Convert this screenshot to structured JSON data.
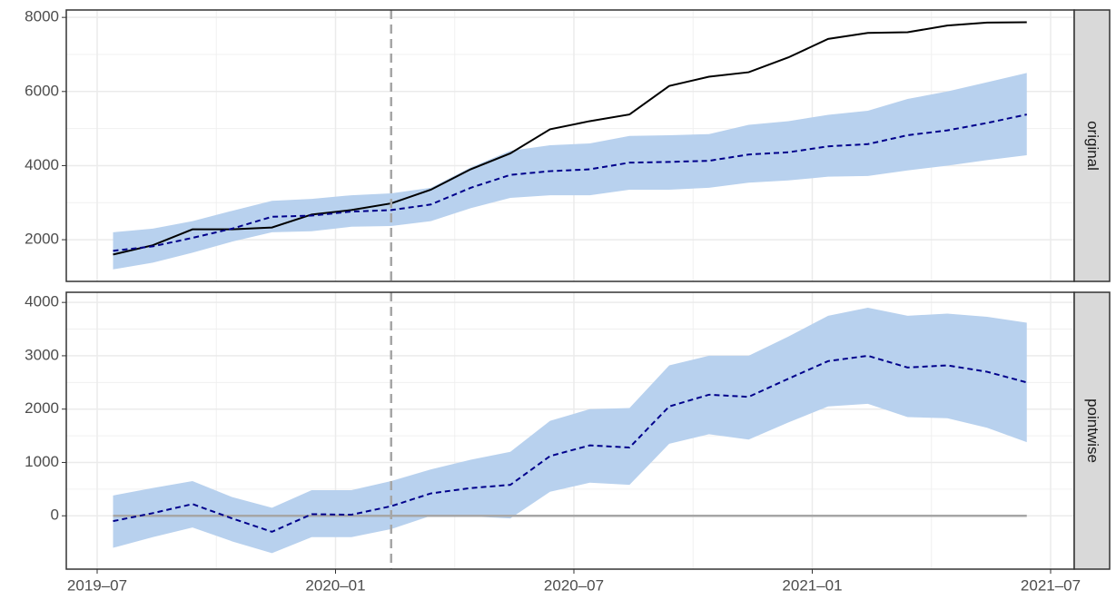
{
  "chart_data": [
    {
      "type": "line",
      "strip": "original",
      "x": [
        "2019-07",
        "2019-08",
        "2019-09",
        "2019-10",
        "2019-11",
        "2019-12",
        "2020-01",
        "2020-02",
        "2020-03",
        "2020-04",
        "2020-05",
        "2020-06",
        "2020-07",
        "2020-08",
        "2020-09",
        "2020-10",
        "2020-11",
        "2020-12",
        "2021-01",
        "2021-02",
        "2021-03",
        "2021-04",
        "2021-05",
        "2021-06"
      ],
      "band": {
        "color": "#b8d1ee",
        "lower": [
          1200,
          1380,
          1650,
          1950,
          2200,
          2230,
          2350,
          2370,
          2500,
          2850,
          3130,
          3200,
          3200,
          3350,
          3350,
          3400,
          3540,
          3600,
          3700,
          3720,
          3870,
          4000,
          4150,
          4280
        ],
        "upper": [
          2200,
          2300,
          2500,
          2780,
          3050,
          3100,
          3200,
          3250,
          3400,
          3950,
          4400,
          4550,
          4600,
          4800,
          4820,
          4850,
          5100,
          5200,
          5370,
          5480,
          5800,
          6000,
          6250,
          6500
        ]
      },
      "series": [
        {
          "color": "#000000",
          "dashed": false,
          "values": [
            1600,
            1850,
            2280,
            2280,
            2330,
            2680,
            2800,
            2980,
            3350,
            3900,
            4330,
            4980,
            5200,
            5380,
            6150,
            6400,
            6520,
            6920,
            7420,
            7580,
            7600,
            7780,
            7860,
            7870
          ]
        },
        {
          "color": "#00008b",
          "dashed": true,
          "values": [
            1700,
            1820,
            2050,
            2300,
            2620,
            2650,
            2760,
            2800,
            2950,
            3400,
            3750,
            3850,
            3900,
            4080,
            4100,
            4130,
            4300,
            4360,
            4520,
            4580,
            4820,
            4950,
            5150,
            5380
          ]
        }
      ],
      "vline": "2020-02",
      "ylim": [
        875,
        8200
      ],
      "yticks": [
        2000,
        4000,
        6000,
        8000
      ],
      "grid": true
    },
    {
      "type": "line",
      "strip": "pointwise",
      "x": [
        "2019-07",
        "2019-08",
        "2019-09",
        "2019-10",
        "2019-11",
        "2019-12",
        "2020-01",
        "2020-02",
        "2020-03",
        "2020-04",
        "2020-05",
        "2020-06",
        "2020-07",
        "2020-08",
        "2020-09",
        "2020-10",
        "2020-11",
        "2020-12",
        "2021-01",
        "2021-02",
        "2021-03",
        "2021-04",
        "2021-05",
        "2021-06"
      ],
      "band": {
        "color": "#b8d1ee",
        "lower": [
          -600,
          -400,
          -220,
          -480,
          -700,
          -400,
          -400,
          -250,
          0,
          -10,
          -50,
          450,
          620,
          580,
          1350,
          1530,
          1430,
          1750,
          2050,
          2100,
          1850,
          1830,
          1650,
          1380
        ],
        "upper": [
          380,
          520,
          650,
          350,
          150,
          480,
          480,
          650,
          870,
          1050,
          1200,
          1780,
          2000,
          2020,
          2820,
          3000,
          3000,
          3360,
          3750,
          3900,
          3750,
          3790,
          3730,
          3620
        ]
      },
      "series": [
        {
          "color": "#00008b",
          "dashed": true,
          "values": [
            -100,
            50,
            220,
            -50,
            -300,
            30,
            20,
            180,
            420,
            520,
            580,
            1120,
            1320,
            1280,
            2050,
            2270,
            2230,
            2570,
            2900,
            3000,
            2780,
            2820,
            2700,
            2500
          ]
        }
      ],
      "vline": "2020-02",
      "hline": 0,
      "ylim": [
        -1000,
        4190
      ],
      "yticks": [
        0,
        1000,
        2000,
        3000,
        4000
      ],
      "grid": true,
      "xticks": [
        {
          "value": "2019-07",
          "label": "2019–07"
        },
        {
          "value": "2020-01",
          "label": "2020–01"
        },
        {
          "value": "2020-07",
          "label": "2020–07"
        },
        {
          "value": "2021-01",
          "label": "2021–01"
        },
        {
          "value": "2021-07",
          "label": "2021–07"
        }
      ]
    }
  ]
}
